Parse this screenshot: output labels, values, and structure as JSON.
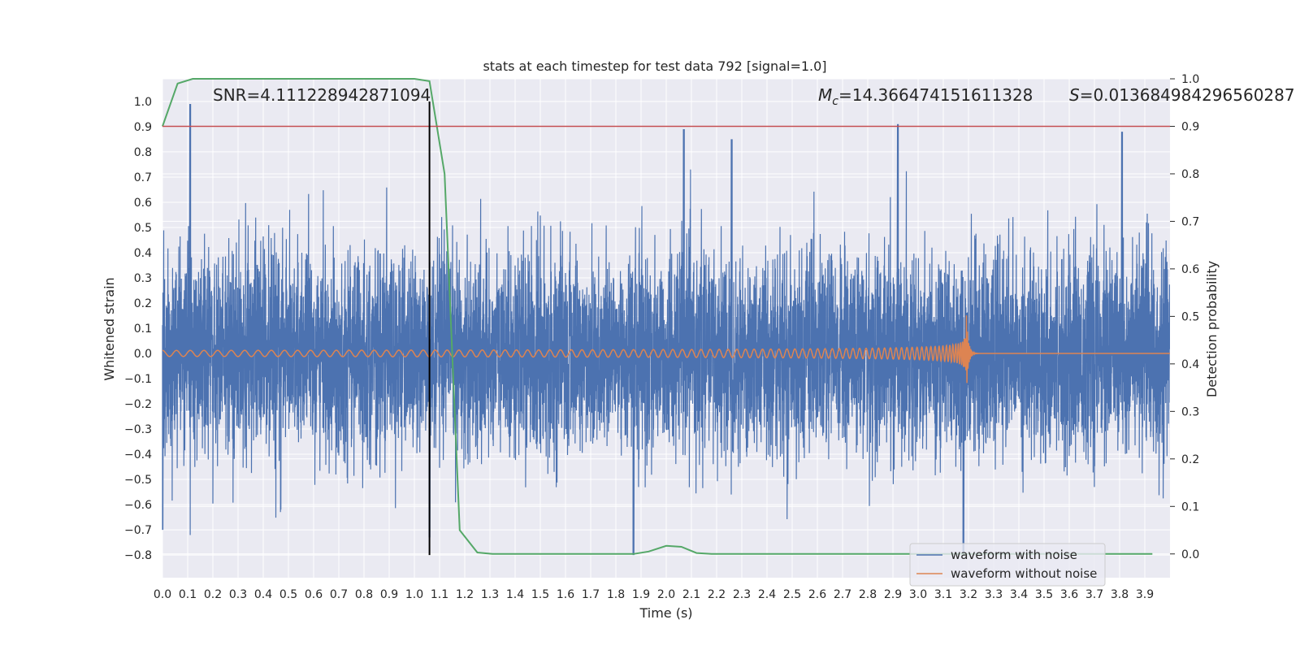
{
  "chart_data": {
    "type": "line",
    "title": "stats at each timestep for test data 792 [signal=1.0]",
    "xlabel": "Time (s)",
    "ylabel": "Whitened strain",
    "y2label": "Detection probability",
    "xlim": [
      0.0,
      4.0
    ],
    "ylim": [
      -0.89,
      1.09
    ],
    "y2lim": [
      -0.05,
      1.0
    ],
    "xticks": [
      "0.0",
      "0.1",
      "0.2",
      "0.3",
      "0.4",
      "0.5",
      "0.6",
      "0.7",
      "0.8",
      "0.9",
      "1.0",
      "1.1",
      "1.2",
      "1.3",
      "1.4",
      "1.5",
      "1.6",
      "1.7",
      "1.8",
      "1.9",
      "2.0",
      "2.1",
      "2.2",
      "2.3",
      "2.4",
      "2.5",
      "2.6",
      "2.7",
      "2.8",
      "2.9",
      "3.0",
      "3.1",
      "3.2",
      "3.3",
      "3.4",
      "3.5",
      "3.6",
      "3.7",
      "3.8",
      "3.9"
    ],
    "yticks": [
      "1.0",
      "0.9",
      "0.8",
      "0.7",
      "0.6",
      "0.5",
      "0.4",
      "0.3",
      "0.2",
      "0.1",
      "0.0",
      "-0.1",
      "-0.2",
      "-0.3",
      "-0.4",
      "-0.5",
      "-0.6",
      "-0.7",
      "-0.8"
    ],
    "y2ticks": [
      "1.0",
      "0.9",
      "0.8",
      "0.7",
      "0.6",
      "0.5",
      "0.4",
      "0.3",
      "0.2",
      "0.1",
      "0.0"
    ],
    "grid": true,
    "legend_position": "lower-right",
    "annotations": {
      "snr": "SNR=4.111228942871094",
      "mc": "=14.366474151611328",
      "mc_symbol": "M",
      "mc_sub": "c",
      "s": "=0.013684984296560287",
      "s_symbol": "S"
    },
    "colors": {
      "noise": "#4c72b0",
      "clean": "#dd8452",
      "prob": "#55a868",
      "threshold": "#c44e52",
      "marker": "#000000",
      "background": "#eaeaf2",
      "grid": "#ffffff"
    },
    "series": [
      {
        "name": "waveform with noise",
        "axis": "left",
        "description_type": "noise_envelope",
        "peaks": [
          {
            "x": 0.0,
            "y": -0.7
          },
          {
            "x": 0.11,
            "y": 1.0
          },
          {
            "x": 1.06,
            "y": -0.73
          },
          {
            "x": 1.87,
            "y": -0.8
          },
          {
            "x": 2.07,
            "y": 0.89
          },
          {
            "x": 2.26,
            "y": 0.85
          },
          {
            "x": 2.92,
            "y": 0.91
          },
          {
            "x": 3.18,
            "y": -0.8
          },
          {
            "x": 3.81,
            "y": 0.88
          }
        ]
      },
      {
        "name": "waveform without noise",
        "axis": "left",
        "description_type": "chirp",
        "merger_time": 3.19,
        "peak_amplitude": 0.19
      },
      {
        "name": "",
        "axis": "right",
        "x": [
          0.0,
          0.06,
          0.12,
          1.0,
          1.06,
          1.12,
          1.18,
          1.25,
          1.31,
          1.87,
          1.93,
          2.0,
          2.06,
          2.12,
          2.18,
          3.93
        ],
        "y": [
          0.9,
          0.99,
          1.0,
          1.0,
          0.995,
          0.8,
          0.05,
          0.003,
          0.0,
          0.0,
          0.005,
          0.017,
          0.015,
          0.002,
          0.0,
          0.0
        ]
      }
    ],
    "threshold_y2": 0.9,
    "marker_x": 1.06
  }
}
